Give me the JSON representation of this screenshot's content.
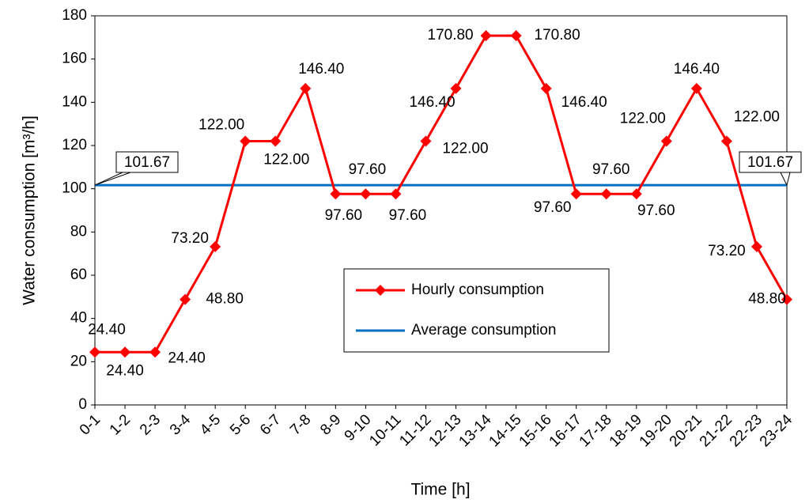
{
  "chart_data": {
    "type": "line",
    "y_label": "Water consumption  [m³/h]",
    "x_label": "Time [h]",
    "categories": [
      "0-1",
      "1-2",
      "2-3",
      "3-4",
      "4-5",
      "5-6",
      "6-7",
      "7-8",
      "8-9",
      "9-10",
      "10-11",
      "11-12",
      "12-13",
      "13-14",
      "14-15",
      "15-16",
      "16-17",
      "17-18",
      "18-19",
      "19-20",
      "20-21",
      "21-22",
      "22-23",
      "23-24"
    ],
    "series": [
      {
        "name": "Hourly consumption",
        "color": "#ff0000",
        "values": [
          24.4,
          24.4,
          24.4,
          48.8,
          73.2,
          122,
          122,
          146.4,
          97.6,
          97.6,
          97.6,
          122,
          146.4,
          170.8,
          170.8,
          146.4,
          97.6,
          97.6,
          97.6,
          122,
          146.4,
          122,
          73.2,
          48.8
        ],
        "value_labels": [
          "24.40",
          "24.40",
          "24.40",
          "48.80",
          "73.20",
          "122.00",
          "122.00",
          "146.40",
          "97.60",
          "97.60",
          "97.60",
          "122.00",
          "146.40",
          "170.80",
          "170.80",
          "146.40",
          "97.60",
          "97.60",
          "97.60",
          "122.00",
          "146.40",
          "122.00",
          "73.20",
          "48.80"
        ]
      },
      {
        "name": "Average consumption",
        "color": "#0070c0",
        "values": [
          101.67,
          101.67,
          101.67,
          101.67,
          101.67,
          101.67,
          101.67,
          101.67,
          101.67,
          101.67,
          101.67,
          101.67,
          101.67,
          101.67,
          101.67,
          101.67,
          101.67,
          101.67,
          101.67,
          101.67,
          101.67,
          101.67,
          101.67,
          101.67
        ],
        "value_labels": [
          "101.67",
          null,
          null,
          null,
          null,
          null,
          null,
          null,
          null,
          null,
          null,
          null,
          null,
          null,
          null,
          null,
          null,
          null,
          null,
          null,
          null,
          null,
          null,
          "101.67"
        ]
      }
    ],
    "ylim": [
      0,
      180
    ],
    "yticks": [
      0,
      20,
      40,
      60,
      80,
      100,
      120,
      140,
      160,
      180
    ]
  }
}
